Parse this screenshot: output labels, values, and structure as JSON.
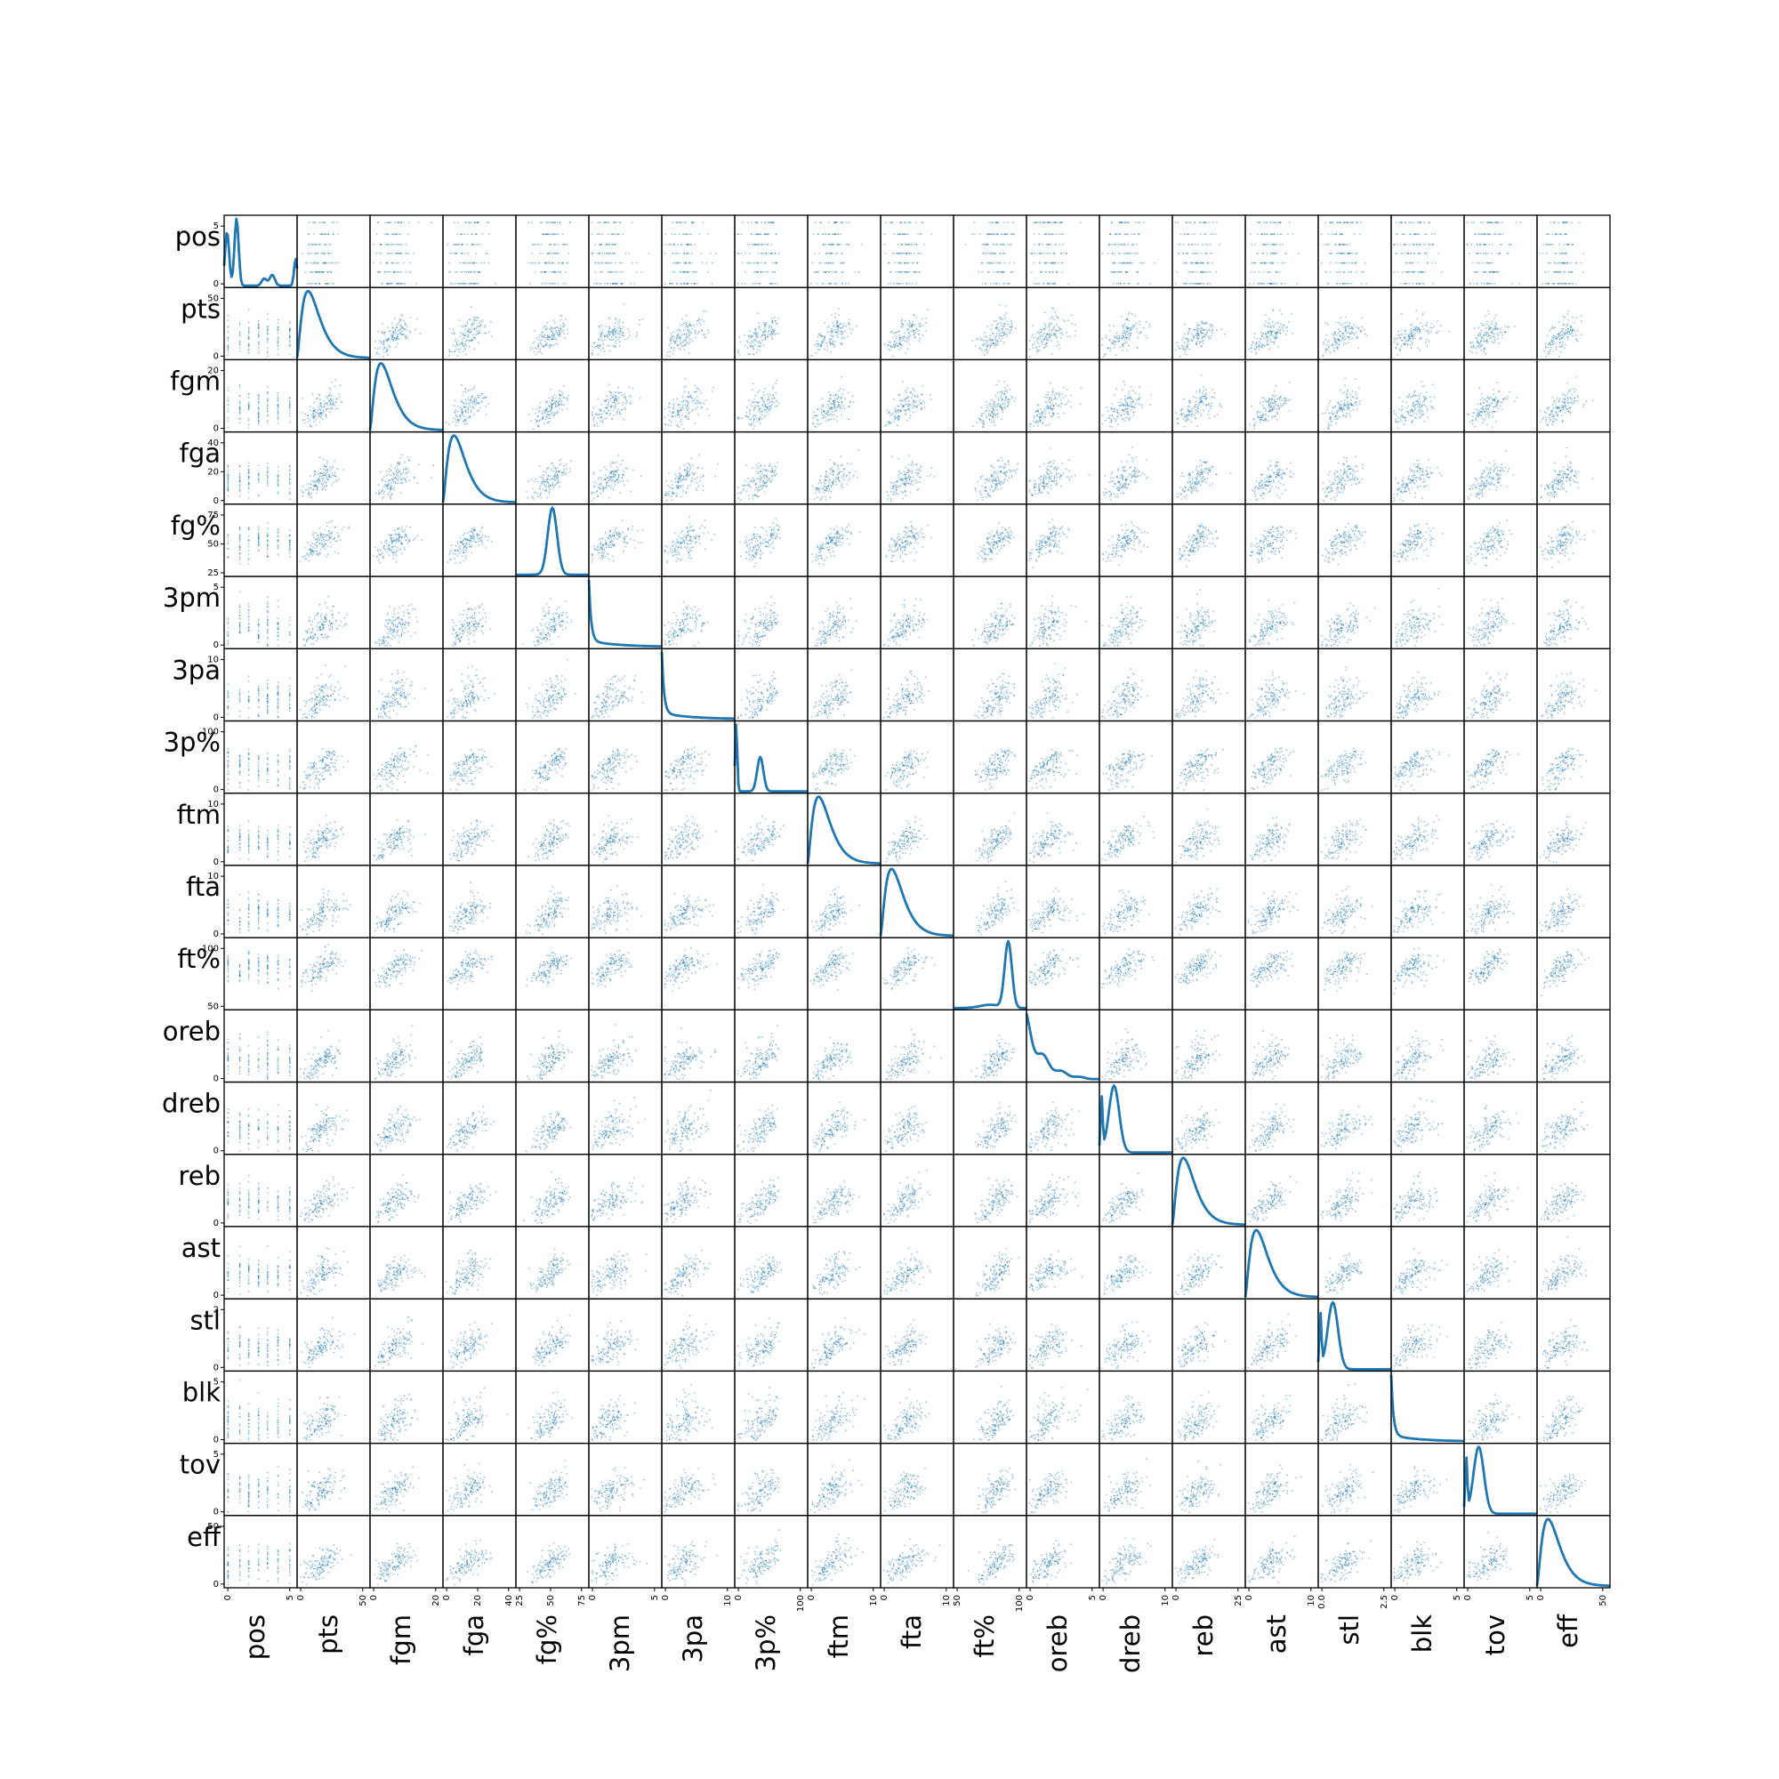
{
  "chart_data": {
    "type": "scatter",
    "title": "",
    "variables": [
      "pos",
      "pts",
      "fgm",
      "fga",
      "fg%",
      "3pm",
      "3pa",
      "3p%",
      "ftm",
      "fta",
      "ft%",
      "oreb",
      "dreb",
      "reb",
      "ast",
      "stl",
      "blk",
      "tov",
      "eff"
    ],
    "diagonal": "kde",
    "color": "#1f77b4",
    "x_ticks": {
      "pos": [
        "0",
        "5"
      ],
      "pts": [
        "0",
        "50"
      ],
      "fgm": [
        "0",
        "20"
      ],
      "fga": [
        "0",
        "20",
        "40"
      ],
      "fg%": [
        "25",
        "50",
        "75"
      ],
      "3pm": [
        "0",
        "5"
      ],
      "3pa": [
        "0",
        "10"
      ],
      "3p%": [
        "0",
        "100"
      ],
      "ftm": [
        "0",
        "10"
      ],
      "fta": [
        "0",
        "10"
      ],
      "ft%": [
        "50",
        "100"
      ],
      "oreb": [
        "0",
        "5"
      ],
      "dreb": [
        "0",
        "10"
      ],
      "reb": [
        "0",
        "25"
      ],
      "ast": [
        "0",
        "10"
      ],
      "stl": [
        "0.0",
        "2.5"
      ],
      "blk": [
        "0",
        "5"
      ],
      "tov": [
        "0",
        "5"
      ],
      "eff": [
        "0",
        "50"
      ]
    },
    "y_ticks": {
      "pos": [
        "0",
        "5"
      ],
      "pts": [
        "0",
        "50"
      ],
      "fgm": [
        "0",
        "20"
      ],
      "fga": [
        "0",
        "20",
        "40"
      ],
      "fg%": [
        "25",
        "50",
        "75"
      ],
      "3pm": [
        "0",
        "5"
      ],
      "3pa": [
        "0",
        "10"
      ],
      "3p%": [
        "0",
        "100"
      ],
      "ftm": [
        "0",
        "10"
      ],
      "fta": [
        "0",
        "10"
      ],
      "ft%": [
        "50",
        "100"
      ],
      "oreb": [
        "0"
      ],
      "dreb": [
        "0"
      ],
      "reb": [
        "0"
      ],
      "ast": [
        "0"
      ],
      "stl": [
        "0",
        "2"
      ],
      "blk": [
        "0",
        "5"
      ],
      "tov": [
        "0",
        "5"
      ],
      "eff": [
        "0",
        "50"
      ]
    }
  }
}
